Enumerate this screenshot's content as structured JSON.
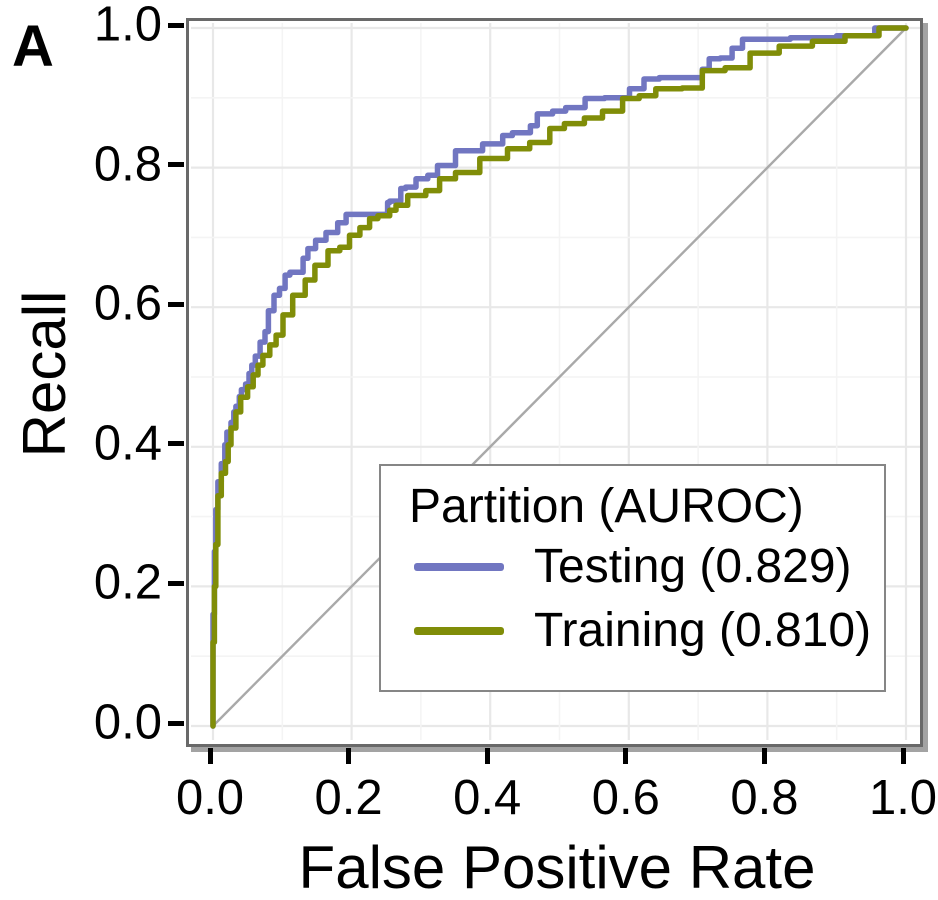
{
  "panel_label": "A",
  "axes": {
    "x_label": "False Positive Rate",
    "y_label": "Recall",
    "x_ticks": [
      "0.0",
      "0.2",
      "0.4",
      "0.6",
      "0.8",
      "1.0"
    ],
    "y_ticks": [
      "0.0",
      "0.2",
      "0.4",
      "0.6",
      "0.8",
      "1.0"
    ]
  },
  "legend": {
    "title": "Partition (AUROC)",
    "items": [
      {
        "label": "Testing (0.829)",
        "color": "#7176C1"
      },
      {
        "label": "Training (0.810)",
        "color": "#808D08"
      }
    ]
  },
  "colors": {
    "testing_line": "#7176C1",
    "training_line": "#808D08",
    "diagonal_line": "#a9a9a9",
    "major_grid": "#e8e8e8",
    "minor_grid": "#f4f4f4",
    "panel_border": "#696969",
    "panel_shadow": "#a3a3a3",
    "legend_border": "#868686",
    "text": "#000000"
  },
  "chart_data": {
    "type": "line",
    "subtype": "roc-step-curves",
    "title": "",
    "xlabel": "False Positive Rate",
    "ylabel": "Recall",
    "xlim": [
      0,
      1
    ],
    "ylim": [
      0,
      1
    ],
    "x_tick_values": [
      0.0,
      0.2,
      0.4,
      0.6,
      0.8,
      1.0
    ],
    "y_tick_values": [
      0.0,
      0.2,
      0.4,
      0.6,
      0.8,
      1.0
    ],
    "grid": "major and minor gridlines (minor at 0.1 steps)",
    "legend_position": "inside bottom-right",
    "legend_title": "Partition (AUROC)",
    "diagonal_reference": {
      "from": [
        0,
        0
      ],
      "to": [
        1,
        1
      ]
    },
    "series": [
      {
        "name": "Testing",
        "auroc": 0.829,
        "color": "#7176C1",
        "points": [
          [
            0.0,
            0.0
          ],
          [
            0.002,
            0.16
          ],
          [
            0.004,
            0.25
          ],
          [
            0.007,
            0.31
          ],
          [
            0.012,
            0.35
          ],
          [
            0.017,
            0.376
          ],
          [
            0.02,
            0.403
          ],
          [
            0.026,
            0.421
          ],
          [
            0.03,
            0.435
          ],
          [
            0.033,
            0.45
          ],
          [
            0.038,
            0.458
          ],
          [
            0.041,
            0.472
          ],
          [
            0.047,
            0.482
          ],
          [
            0.052,
            0.49
          ],
          [
            0.056,
            0.505
          ],
          [
            0.061,
            0.517
          ],
          [
            0.068,
            0.53
          ],
          [
            0.075,
            0.55
          ],
          [
            0.08,
            0.565
          ],
          [
            0.088,
            0.595
          ],
          [
            0.096,
            0.617
          ],
          [
            0.104,
            0.627
          ],
          [
            0.111,
            0.646
          ],
          [
            0.13,
            0.65
          ],
          [
            0.137,
            0.67
          ],
          [
            0.148,
            0.684
          ],
          [
            0.163,
            0.696
          ],
          [
            0.18,
            0.707
          ],
          [
            0.192,
            0.721
          ],
          [
            0.2,
            0.733
          ],
          [
            0.252,
            0.733
          ],
          [
            0.255,
            0.75
          ],
          [
            0.271,
            0.752
          ],
          [
            0.278,
            0.77
          ],
          [
            0.293,
            0.772
          ],
          [
            0.31,
            0.784
          ],
          [
            0.324,
            0.789
          ],
          [
            0.35,
            0.803
          ],
          [
            0.389,
            0.824
          ],
          [
            0.418,
            0.834
          ],
          [
            0.432,
            0.846
          ],
          [
            0.458,
            0.85
          ],
          [
            0.468,
            0.86
          ],
          [
            0.49,
            0.877
          ],
          [
            0.509,
            0.881
          ],
          [
            0.537,
            0.886
          ],
          [
            0.565,
            0.899
          ],
          [
            0.601,
            0.9
          ],
          [
            0.622,
            0.913
          ],
          [
            0.644,
            0.927
          ],
          [
            0.706,
            0.929
          ],
          [
            0.716,
            0.941
          ],
          [
            0.732,
            0.956
          ],
          [
            0.749,
            0.957
          ],
          [
            0.764,
            0.971
          ],
          [
            0.833,
            0.984
          ],
          [
            0.9,
            0.986
          ],
          [
            0.955,
            0.989
          ],
          [
            1.0,
            1.0
          ]
        ]
      },
      {
        "name": "Training",
        "auroc": 0.81,
        "color": "#808D08",
        "points": [
          [
            0.0,
            0.0
          ],
          [
            0.002,
            0.12
          ],
          [
            0.004,
            0.2
          ],
          [
            0.007,
            0.26
          ],
          [
            0.012,
            0.33
          ],
          [
            0.018,
            0.362
          ],
          [
            0.022,
            0.379
          ],
          [
            0.026,
            0.403
          ],
          [
            0.033,
            0.427
          ],
          [
            0.04,
            0.45
          ],
          [
            0.05,
            0.471
          ],
          [
            0.058,
            0.486
          ],
          [
            0.065,
            0.503
          ],
          [
            0.072,
            0.517
          ],
          [
            0.082,
            0.531
          ],
          [
            0.091,
            0.546
          ],
          [
            0.101,
            0.56
          ],
          [
            0.115,
            0.589
          ],
          [
            0.133,
            0.617
          ],
          [
            0.147,
            0.639
          ],
          [
            0.166,
            0.66
          ],
          [
            0.183,
            0.681
          ],
          [
            0.197,
            0.686
          ],
          [
            0.212,
            0.703
          ],
          [
            0.226,
            0.714
          ],
          [
            0.238,
            0.727
          ],
          [
            0.255,
            0.731
          ],
          [
            0.264,
            0.739
          ],
          [
            0.281,
            0.746
          ],
          [
            0.307,
            0.76
          ],
          [
            0.327,
            0.767
          ],
          [
            0.35,
            0.784
          ],
          [
            0.385,
            0.793
          ],
          [
            0.425,
            0.813
          ],
          [
            0.457,
            0.827
          ],
          [
            0.486,
            0.836
          ],
          [
            0.507,
            0.856
          ],
          [
            0.536,
            0.863
          ],
          [
            0.562,
            0.871
          ],
          [
            0.591,
            0.881
          ],
          [
            0.615,
            0.899
          ],
          [
            0.639,
            0.903
          ],
          [
            0.677,
            0.913
          ],
          [
            0.706,
            0.914
          ],
          [
            0.739,
            0.939
          ],
          [
            0.775,
            0.943
          ],
          [
            0.817,
            0.964
          ],
          [
            0.865,
            0.974
          ],
          [
            0.912,
            0.981
          ],
          [
            0.961,
            0.989
          ],
          [
            1.0,
            1.0
          ]
        ]
      }
    ]
  }
}
